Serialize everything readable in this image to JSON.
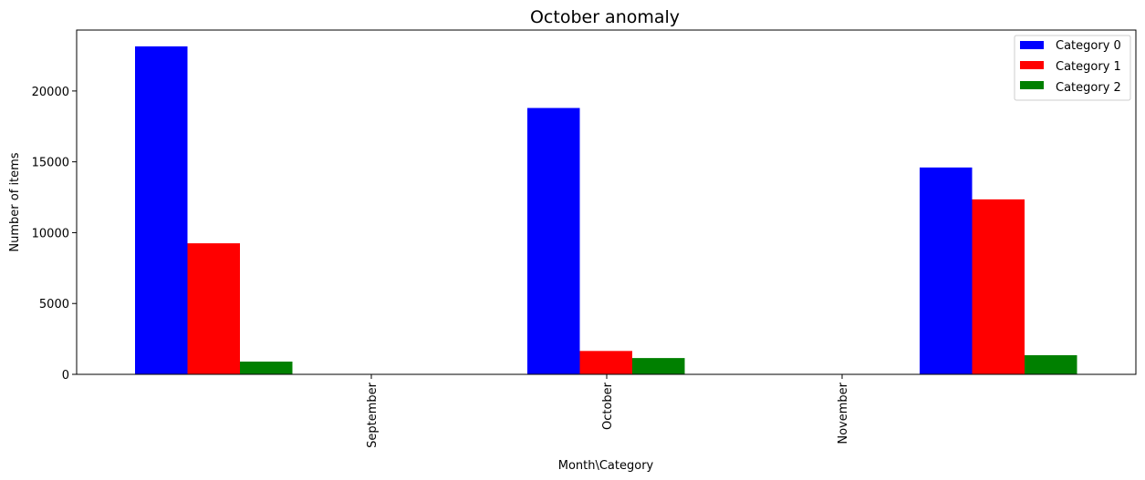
{
  "chart_data": {
    "type": "bar",
    "title": "October anomaly",
    "xlabel": "Month\\Category",
    "ylabel": "Number of items",
    "categories": [
      "September",
      "October",
      "November"
    ],
    "series": [
      {
        "name": "Category 0",
        "color": "#0000ff",
        "values": [
          23150,
          18800,
          14600
        ]
      },
      {
        "name": "Category 1",
        "color": "#ff0000",
        "values": [
          9250,
          1650,
          12350
        ]
      },
      {
        "name": "Category 2",
        "color": "#008000",
        "values": [
          900,
          1150,
          1350
        ]
      }
    ],
    "yticks": [
      0,
      5000,
      10000,
      15000,
      20000
    ],
    "ylim": [
      0,
      24300
    ],
    "grid": false,
    "legend_position": "top-right"
  }
}
